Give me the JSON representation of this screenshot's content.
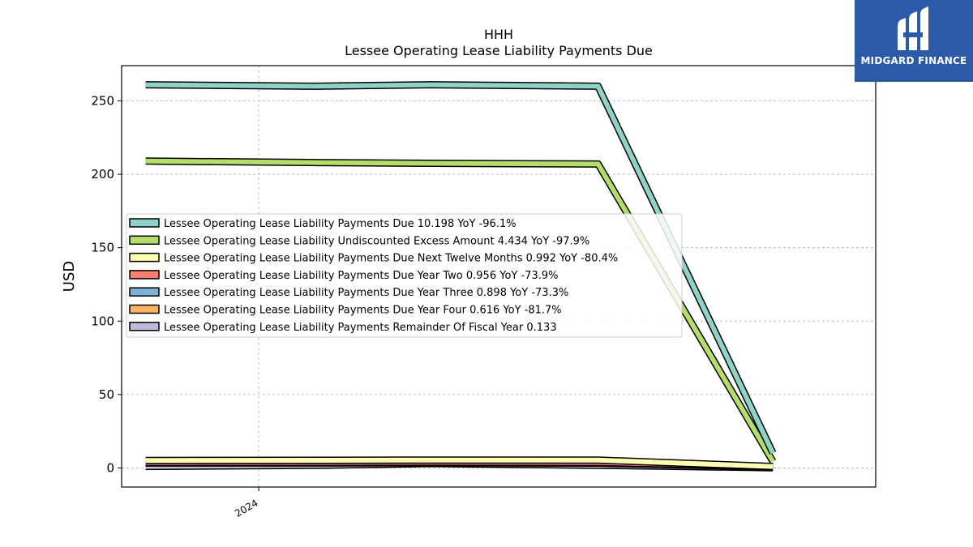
{
  "brand": {
    "name": "MIDGARD FINANCE",
    "bg_color": "#2b5aa8"
  },
  "chart_data": {
    "type": "line",
    "title": "HHH",
    "subtitle": "Lessee Operating Lease Liability Payments Due",
    "ylabel": "USD",
    "xlabel": "",
    "ylim": [
      -13,
      274
    ],
    "xlim": [
      2023.6,
      2025.8
    ],
    "yticks": [
      0,
      50,
      100,
      150,
      200,
      250
    ],
    "xticks": [
      {
        "value": 2024.0,
        "label": "2024"
      }
    ],
    "grid": true,
    "legend_position": "center-left",
    "series": [
      {
        "name": "Lessee Operating Lease Liability Payments Due  10.198 YoY -96.1%",
        "color": "#8dd3c7",
        "x": [
          2023.67,
          2024.17,
          2024.5,
          2024.99,
          2025.5
        ],
        "values": [
          261,
          260,
          261,
          260,
          10.198
        ]
      },
      {
        "name": "Lessee Operating Lease Liability Undiscounted Excess Amount  4.434 YoY -97.9%",
        "color": "#b3de69",
        "x": [
          2023.67,
          2024.17,
          2024.5,
          2024.99,
          2025.5
        ],
        "values": [
          209,
          208,
          207.5,
          207,
          4.434
        ]
      },
      {
        "name": "Lessee Operating Lease Liability Payments Due Next Twelve Months  0.992 YoY -80.4%",
        "color": "#ffffb3",
        "x": [
          2023.67,
          2024.17,
          2024.5,
          2024.99,
          2025.5
        ],
        "values": [
          5.1,
          5.2,
          5.4,
          5.3,
          0.992
        ]
      },
      {
        "name": "Lessee Operating Lease Liability Payments Due Year Two  0.956 YoY -73.9%",
        "color": "#fb8072",
        "x": [
          2023.67,
          2024.17,
          2024.5,
          2024.99,
          2025.5
        ],
        "values": [
          3.7,
          3.8,
          3.9,
          3.7,
          0.956
        ]
      },
      {
        "name": "Lessee Operating Lease Liability Payments Due Year Three  0.898 YoY -73.3%",
        "color": "#80b1d3",
        "x": [
          2023.67,
          2024.17,
          2024.5,
          2024.99,
          2025.5
        ],
        "values": [
          3.4,
          3.5,
          3.6,
          3.4,
          0.898
        ]
      },
      {
        "name": "Lessee Operating Lease Liability Payments Due Year Four  0.616 YoY -81.7%",
        "color": "#fdb462",
        "x": [
          2023.67,
          2024.17,
          2024.5,
          2024.99,
          2025.5
        ],
        "values": [
          3.4,
          3.4,
          3.5,
          3.3,
          0.616
        ]
      },
      {
        "name": "Lessee Operating Lease Liability Payments Remainder Of Fiscal Year  0.133",
        "color": "#bebada",
        "x": [
          2023.67,
          2024.17,
          2024.5,
          2024.99,
          2025.5
        ],
        "values": [
          1.0,
          1.8,
          3.0,
          1.8,
          0.133
        ]
      }
    ]
  }
}
